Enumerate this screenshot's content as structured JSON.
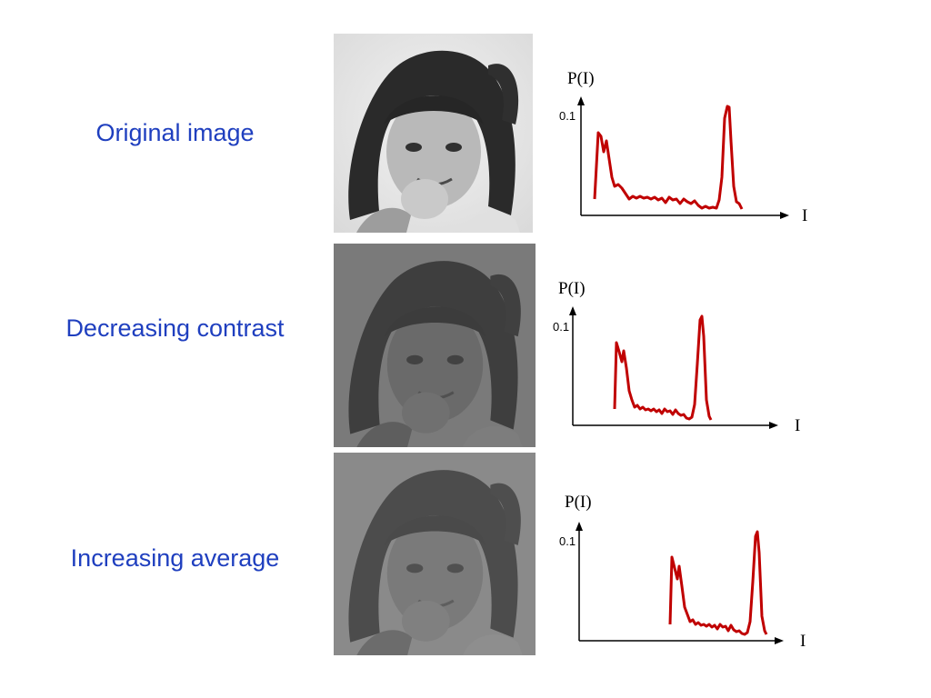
{
  "colors": {
    "label_text": "#1f3fbf",
    "histogram_line": "#c00000",
    "axis": "#000000"
  },
  "rows": [
    {
      "label": "Original image",
      "photo_tone": "original",
      "histogram": {
        "y_axis_label": "P(I)",
        "y_tick_label": "0.1",
        "x_axis_label": "I"
      }
    },
    {
      "label": "Decreasing contrast",
      "photo_tone": "low-contrast",
      "histogram": {
        "y_axis_label": "P(I)",
        "y_tick_label": "0.1",
        "x_axis_label": "I"
      }
    },
    {
      "label": "Increasing average",
      "photo_tone": "brightened-low-contrast",
      "histogram": {
        "y_axis_label": "P(I)",
        "y_tick_label": "0.1",
        "x_axis_label": "I"
      }
    }
  ]
}
